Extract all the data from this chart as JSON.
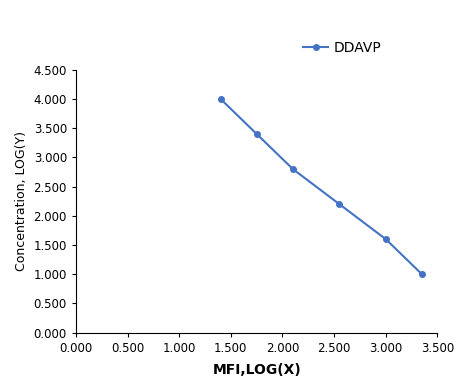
{
  "x": [
    1.4,
    1.75,
    2.1,
    2.55,
    3.0,
    3.35
  ],
  "y": [
    4.0,
    3.4,
    2.8,
    2.2,
    1.6,
    1.0
  ],
  "line_color": "#4472c4",
  "marker_color": "#4472c4",
  "marker_style": "o",
  "marker_size": 4,
  "line_width": 1.5,
  "xlabel": "MFI,LOG(X)",
  "ylabel": "Concentration, LOG(Y)",
  "xlim": [
    0.0,
    3.5
  ],
  "ylim": [
    0.0,
    4.5
  ],
  "xticks": [
    0.0,
    0.5,
    1.0,
    1.5,
    2.0,
    2.5,
    3.0,
    3.5
  ],
  "yticks": [
    0.0,
    0.5,
    1.0,
    1.5,
    2.0,
    2.5,
    3.0,
    3.5,
    4.0,
    4.5
  ],
  "legend_label": "DDAVP",
  "background_color": "#ffffff",
  "xlabel_fontsize": 10,
  "ylabel_fontsize": 9,
  "tick_fontsize": 8.5,
  "legend_fontsize": 10
}
